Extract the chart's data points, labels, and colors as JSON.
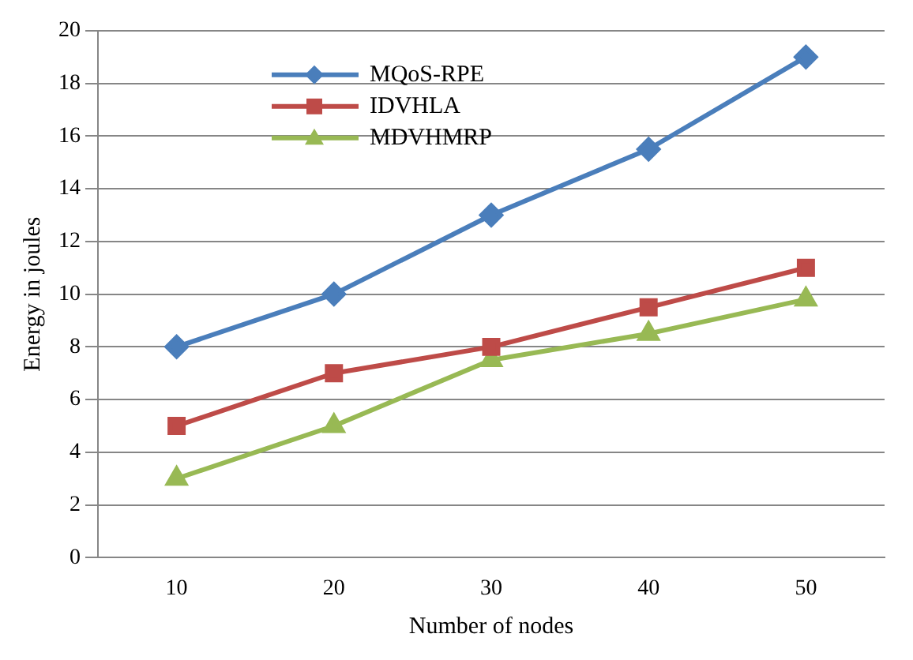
{
  "chart_data": {
    "type": "line",
    "xlabel": "Number of nodes",
    "ylabel": "Energy in joules",
    "categories": [
      "10",
      "20",
      "30",
      "40",
      "50"
    ],
    "series": [
      {
        "name": "MQoS-RPE",
        "color": "#4a7ebb",
        "marker": "diamond",
        "values": [
          8,
          10,
          13,
          15.5,
          19
        ]
      },
      {
        "name": "IDVHLA",
        "color": "#be4b48",
        "marker": "square",
        "values": [
          5,
          7,
          8,
          9.5,
          11
        ]
      },
      {
        "name": "MDVHMRP",
        "color": "#98b954",
        "marker": "triangle",
        "values": [
          3,
          5,
          7.5,
          8.5,
          9.8
        ]
      }
    ],
    "ylim": [
      0,
      20
    ],
    "yticks": [
      0,
      2,
      4,
      6,
      8,
      10,
      12,
      14,
      16,
      18,
      20
    ],
    "grid": "y",
    "legend": "top left",
    "line_style": "solid"
  }
}
